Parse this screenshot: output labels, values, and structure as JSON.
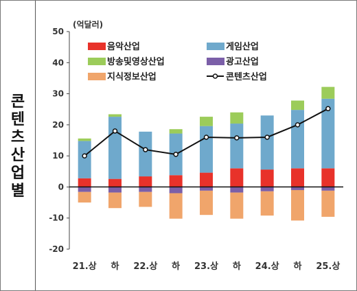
{
  "side_label": "콘텐츠산업별",
  "chart_data": {
    "type": "bar",
    "unit_label": "(억달러)",
    "categories": [
      "21.상",
      "하",
      "22.상",
      "하",
      "23.상",
      "하",
      "24.상",
      "하",
      "25.상"
    ],
    "ylim": [
      -20,
      50
    ],
    "yticks": [
      50,
      40,
      30,
      20,
      10,
      0,
      -10,
      -20
    ],
    "grid": false,
    "legend_position": "top",
    "stack_series": [
      {
        "name": "음악산업",
        "color": "#e8322a",
        "values": [
          2.8,
          2.6,
          3.4,
          3.8,
          4.6,
          6.0,
          5.6,
          6.0,
          6.0
        ]
      },
      {
        "name": "게임산업",
        "color": "#6fa9cc",
        "values": [
          12.0,
          20.0,
          14.4,
          13.4,
          15.0,
          14.4,
          17.4,
          18.8,
          22.4
        ]
      },
      {
        "name": "방송및영상산업",
        "color": "#9ccc5a",
        "values": [
          0.8,
          0.8,
          0.0,
          1.4,
          3.0,
          3.6,
          0.0,
          3.0,
          3.8
        ]
      },
      {
        "name": "광고산업",
        "color": "#7b5fa8",
        "values": [
          -1.6,
          -1.8,
          -1.6,
          -2.0,
          -1.2,
          -1.8,
          -1.4,
          -1.0,
          -1.2
        ]
      },
      {
        "name": "지식정보산업",
        "color": "#f0a56b",
        "values": [
          -3.4,
          -5.0,
          -4.8,
          -8.2,
          -7.8,
          -8.4,
          -7.8,
          -9.8,
          -8.4
        ]
      }
    ],
    "line_series": {
      "name": "콘텐츠산업",
      "color": "#111111",
      "values": [
        10.0,
        18.0,
        12.0,
        10.5,
        16.0,
        15.8,
        16.0,
        20.0,
        25.2
      ]
    }
  }
}
